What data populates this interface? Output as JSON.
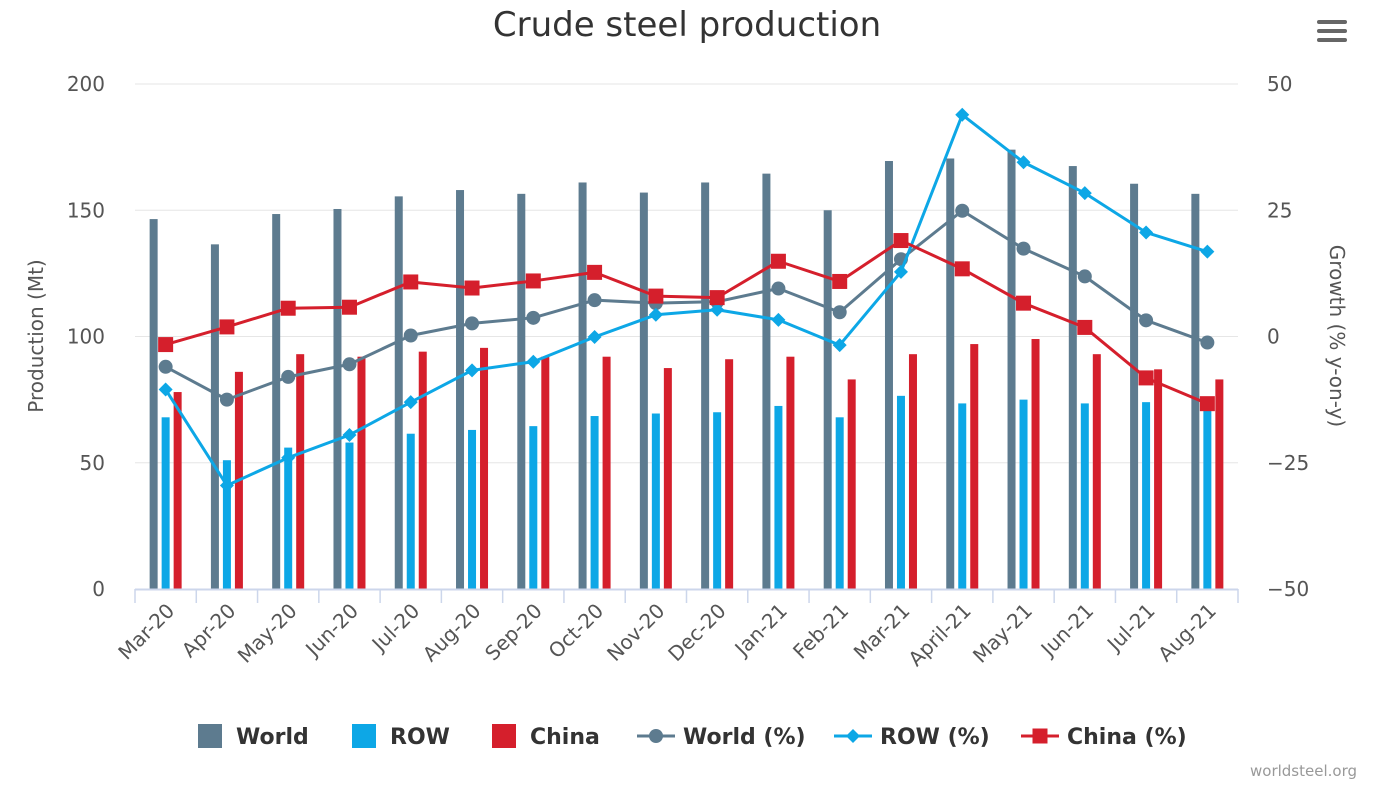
{
  "menu": {
    "icon": "hamburger-menu-icon"
  },
  "credits": "worldsteel.org",
  "colors": {
    "world": "#5d7b8f",
    "row": "#0da7e6",
    "china": "#d51f2c",
    "axis_text": "#555555",
    "grid": "#e6e6e6",
    "menu_icon": "#666666"
  },
  "chart_data": {
    "type": "bar",
    "title": "Crude steel production",
    "ylabel": "Production (Mt)",
    "y2label": "Growth (% y-on-y)",
    "ylim": [
      0,
      200
    ],
    "yticks": [
      0,
      50,
      100,
      150,
      200
    ],
    "y2lim": [
      -50,
      50
    ],
    "y2ticks": [
      "−50",
      "−25",
      "0",
      "25",
      "50"
    ],
    "grid": true,
    "legend": "bottom-center",
    "categories": [
      "Mar-20",
      "Apr-20",
      "May-20",
      "Jun-20",
      "Jul-20",
      "Aug-20",
      "Sep-20",
      "Oct-20",
      "Nov-20",
      "Dec-20",
      "Jan-21",
      "Feb-21",
      "Mar-21",
      "April-21",
      "May-21",
      "Jun-21",
      "Jul-21",
      "Aug-21"
    ],
    "series": [
      {
        "name": "World",
        "type": "bar",
        "axis": "left",
        "values": [
          146.5,
          136.5,
          148.5,
          150.5,
          155.5,
          158.0,
          156.5,
          161.0,
          157.0,
          161.0,
          164.5,
          150.0,
          169.5,
          170.5,
          174.0,
          167.5,
          160.5,
          156.5
        ]
      },
      {
        "name": "ROW",
        "type": "bar",
        "axis": "left",
        "values": [
          68.0,
          51.0,
          56.0,
          58.0,
          61.5,
          63.0,
          64.5,
          68.5,
          69.5,
          70.0,
          72.5,
          68.0,
          76.5,
          73.5,
          75.0,
          73.5,
          74.0,
          72.0
        ]
      },
      {
        "name": "China",
        "type": "bar",
        "axis": "left",
        "values": [
          78.0,
          86.0,
          93.0,
          92.0,
          94.0,
          95.5,
          92.0,
          92.0,
          87.5,
          91.0,
          92.0,
          83.0,
          93.0,
          97.0,
          99.0,
          93.0,
          87.0,
          83.0
        ]
      },
      {
        "name": "World (%)",
        "type": "line",
        "axis": "right",
        "marker": "circle",
        "values": [
          -6.0,
          -12.5,
          -8.0,
          -5.5,
          0.2,
          2.6,
          3.7,
          7.2,
          6.6,
          6.9,
          9.5,
          4.8,
          15.3,
          24.9,
          17.4,
          11.9,
          3.2,
          -1.2
        ]
      },
      {
        "name": "ROW (%)",
        "type": "line",
        "axis": "right",
        "marker": "diamond",
        "values": [
          -10.5,
          -29.5,
          -24.0,
          -19.5,
          -13.0,
          -6.7,
          -5.0,
          -0.1,
          4.3,
          5.3,
          3.3,
          -1.7,
          12.8,
          43.9,
          34.5,
          28.4,
          20.6,
          16.8
        ]
      },
      {
        "name": "China (%)",
        "type": "line",
        "axis": "right",
        "marker": "square",
        "values": [
          -1.6,
          1.9,
          5.6,
          5.8,
          10.8,
          9.6,
          11.0,
          12.7,
          8.0,
          7.7,
          14.9,
          10.9,
          19.0,
          13.4,
          6.6,
          1.8,
          -8.2,
          -13.3
        ]
      }
    ]
  }
}
